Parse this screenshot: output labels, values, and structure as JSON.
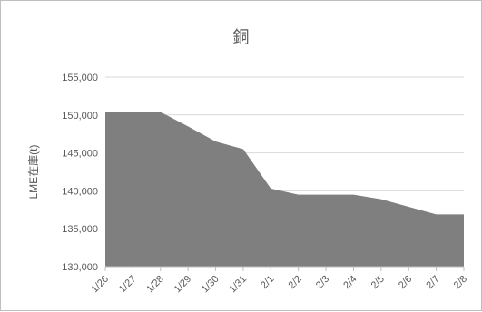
{
  "chart_data": {
    "type": "area",
    "title": "銅",
    "xlabel": "",
    "ylabel": "LME在庫(t)",
    "categories": [
      "1/26",
      "1/27",
      "1/28",
      "1/29",
      "1/30",
      "1/31",
      "2/1",
      "2/2",
      "2/3",
      "2/4",
      "2/5",
      "2/6",
      "2/7",
      "2/8"
    ],
    "values": [
      150400,
      150400,
      150400,
      148500,
      146500,
      145500,
      140300,
      139500,
      139500,
      139500,
      138900,
      137900,
      136900,
      136900
    ],
    "ylim": [
      130000,
      155000
    ],
    "yticks": [
      {
        "value": 130000,
        "label": "130,000"
      },
      {
        "value": 135000,
        "label": "135,000"
      },
      {
        "value": 140000,
        "label": "140,000"
      },
      {
        "value": 145000,
        "label": "145,000"
      },
      {
        "value": 150000,
        "label": "150,000"
      },
      {
        "value": 155000,
        "label": "155,000"
      }
    ],
    "fill_color": "#7f7f7f",
    "grid_color": "#d9d9d9",
    "grid": true
  }
}
